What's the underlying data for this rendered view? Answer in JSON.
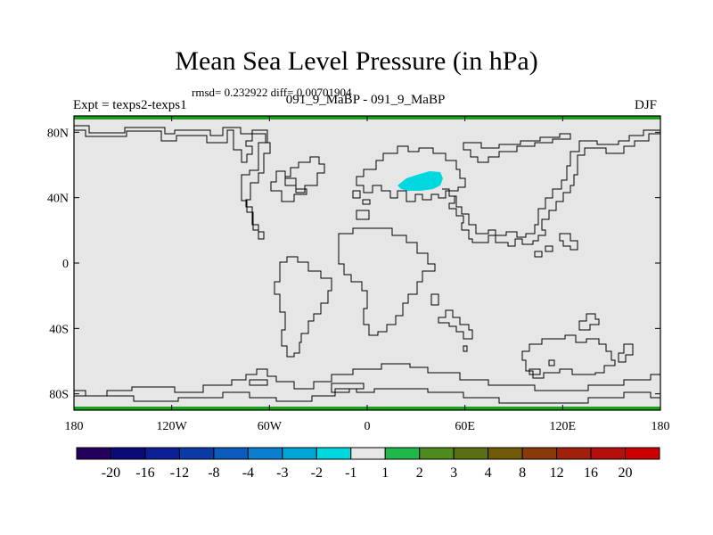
{
  "title": "Mean Sea Level Pressure (in hPa)",
  "stats_text": "rmsd= 0.232922 diff= 0.00701904",
  "left_subtitle": "Expt = texps2-texps1",
  "center_subtitle": "091_9_MaBP - 091_9_MaBP",
  "right_subtitle": "DJF",
  "map": {
    "lat_ticks": [
      "80N",
      "40N",
      "0",
      "40S",
      "80S"
    ],
    "lon_ticks": [
      "180",
      "120W",
      "60W",
      "0",
      "60E",
      "120E",
      "180"
    ],
    "background_color": "#e6e6e6",
    "anomaly_color": "#00d8e0",
    "polar_band_color": "#1aa11a"
  },
  "colorbar": {
    "colors": [
      "#22005c",
      "#0a0a78",
      "#0c1f96",
      "#0a3aa6",
      "#0b5bbd",
      "#0a7fd1",
      "#00a6d6",
      "#00d8e0",
      "#e6e6e6",
      "#1fb84a",
      "#4f8a1f",
      "#5c6e12",
      "#705a0a",
      "#8a3a0a",
      "#a0200a",
      "#b40f0a",
      "#cc0000"
    ],
    "labels": [
      "-20",
      "-16",
      "-12",
      "-8",
      "-4",
      "-3",
      "-2",
      "-1",
      "1",
      "2",
      "3",
      "4",
      "8",
      "12",
      "16",
      "20"
    ]
  }
}
